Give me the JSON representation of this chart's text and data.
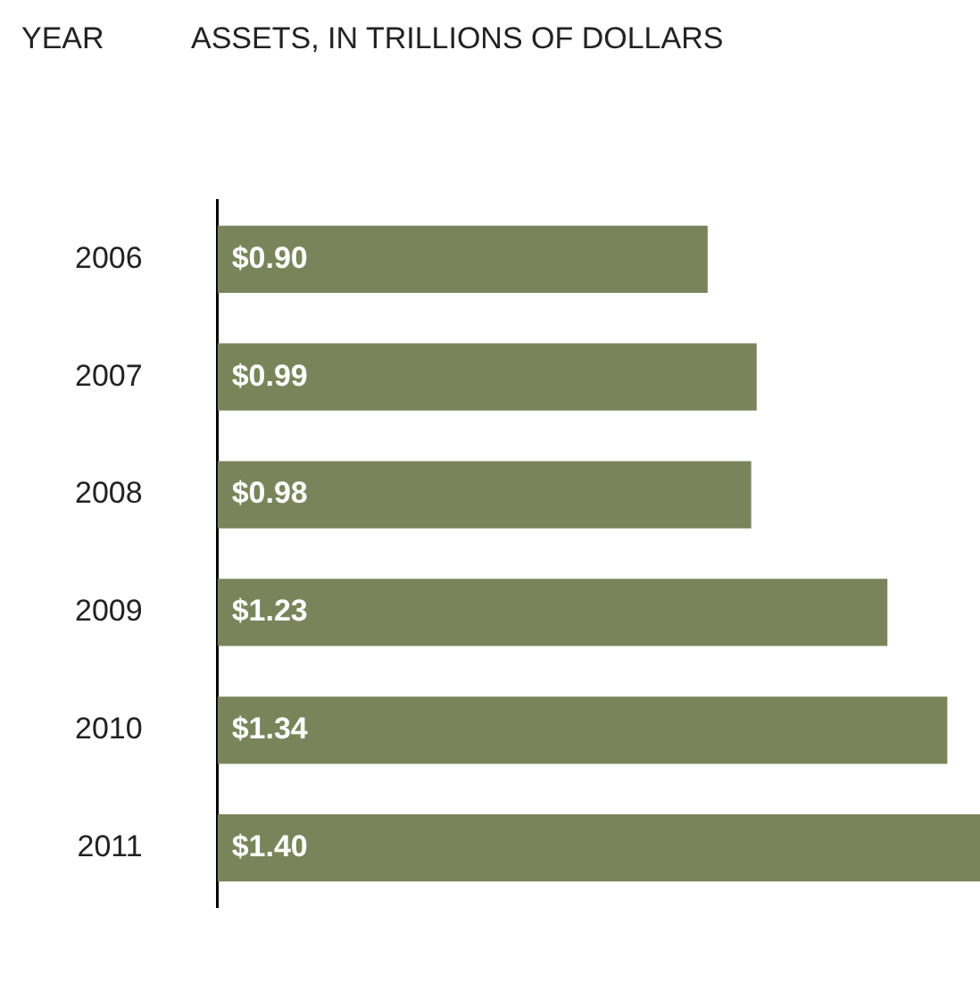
{
  "chart_data": {
    "type": "bar",
    "orientation": "horizontal",
    "xlabel": "ASSETS, IN TRILLIONS OF DOLLARS",
    "ylabel": "YEAR",
    "categories": [
      "2006",
      "2007",
      "2008",
      "2009",
      "2010",
      "2011"
    ],
    "values": [
      0.9,
      0.99,
      0.98,
      1.23,
      1.34,
      1.4
    ],
    "value_labels": [
      "$0.90",
      "$0.99",
      "$0.98",
      "$1.23",
      "$1.34",
      "$1.40"
    ],
    "color": "#7a845a",
    "tick_labels": "y",
    "legend": false
  }
}
